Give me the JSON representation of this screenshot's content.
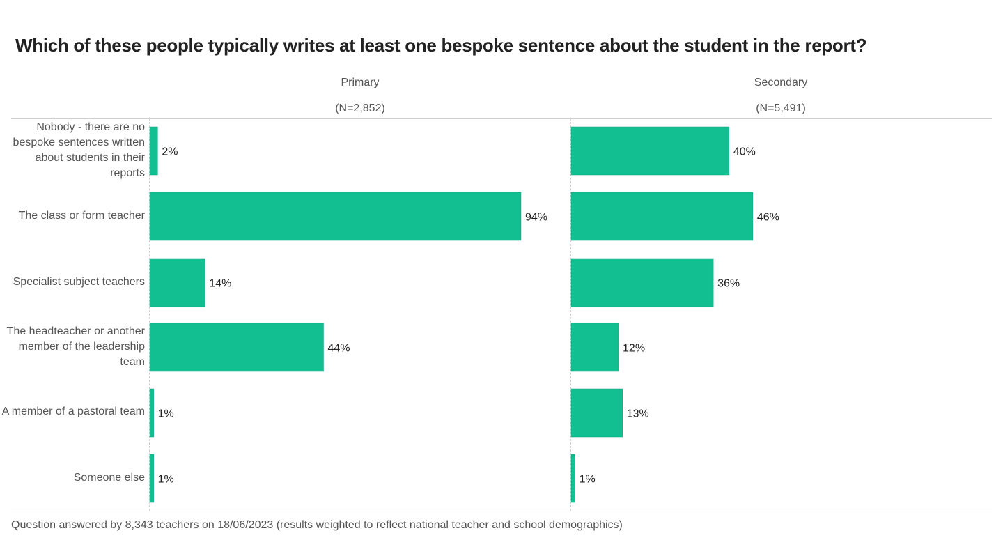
{
  "title": "Which of these people typically writes at least one bespoke sentence about the student in the report?",
  "footnote": "Question answered by 8,343 teachers on 18/06/2023 (results weighted to reflect national teacher and school demographics)",
  "colors": {
    "bar": "#12BF91",
    "bar_edge": "#0fa57d"
  },
  "chart_data": {
    "type": "bar",
    "orientation": "horizontal",
    "categories": [
      "Nobody - there are no bespoke sentences written about students in their reports",
      "The class or form teacher",
      "Specialist subject teachers",
      "The headteacher or another member of the leadership team",
      "A member of a pastoral team",
      "Someone else"
    ],
    "panels": [
      {
        "name": "Primary",
        "n_label": "(N=2,852)",
        "values": [
          2,
          94,
          14,
          44,
          1,
          1
        ],
        "labels": [
          "2%",
          "94%",
          "14%",
          "44%",
          "1%",
          "1%"
        ]
      },
      {
        "name": "Secondary",
        "n_label": "(N=5,491)",
        "values": [
          40,
          46,
          36,
          12,
          13,
          1
        ],
        "labels": [
          "40%",
          "46%",
          "36%",
          "12%",
          "13%",
          "1%"
        ]
      }
    ],
    "unit": "%",
    "xlim": [
      0,
      100
    ],
    "grid": false,
    "legend": "none"
  }
}
